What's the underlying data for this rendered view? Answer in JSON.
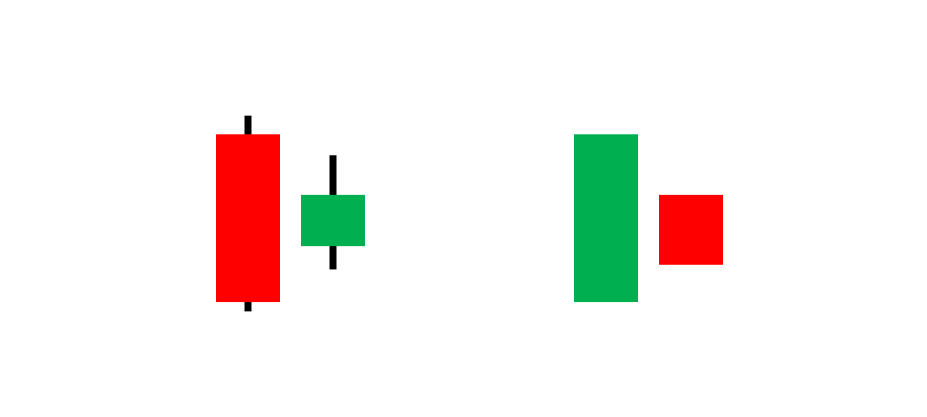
{
  "colors": {
    "bearish": "#ff0000",
    "bullish": "#00b050",
    "wick": "#000000",
    "background": "#ffffff"
  },
  "chart_data": {
    "type": "candlestick",
    "groups": [
      {
        "pattern": "bullish-harami",
        "candles": [
          {
            "direction": "bearish",
            "open": 87,
            "close": 15,
            "high": 95,
            "low": 11
          },
          {
            "direction": "bullish",
            "open": 39,
            "close": 61,
            "high": 78,
            "low": 29
          }
        ]
      },
      {
        "pattern": "bearish-harami",
        "candles": [
          {
            "direction": "bullish",
            "open": 15,
            "close": 87,
            "high": 87,
            "low": 15
          },
          {
            "direction": "bearish",
            "open": 61,
            "close": 31,
            "high": 61,
            "low": 31
          }
        ]
      }
    ],
    "ylim": [
      0,
      100
    ],
    "grid": false,
    "legend": "none"
  }
}
